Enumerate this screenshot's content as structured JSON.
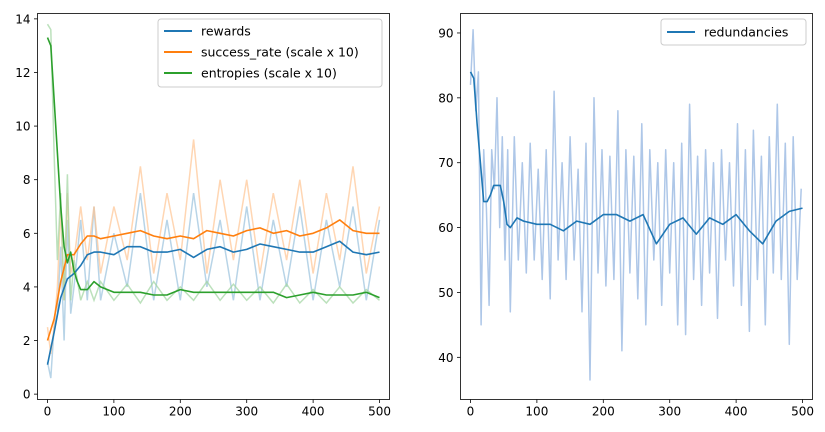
{
  "chart_data": [
    {
      "type": "line",
      "title": "",
      "xlabel": "",
      "ylabel": "",
      "xlim": [
        -15,
        515
      ],
      "ylim": [
        -0.2,
        14.2
      ],
      "xticks": [
        0,
        100,
        200,
        300,
        400,
        500
      ],
      "yticks": [
        0,
        2,
        4,
        6,
        8,
        10,
        12,
        14
      ],
      "grid": false,
      "legend_position": "top-right",
      "series": [
        {
          "name": "rewards",
          "color": "#1f77b4",
          "x": [
            0,
            10,
            20,
            30,
            40,
            50,
            60,
            70,
            80,
            100,
            120,
            140,
            160,
            180,
            200,
            220,
            240,
            260,
            280,
            300,
            320,
            340,
            360,
            380,
            400,
            420,
            440,
            460,
            480,
            500
          ],
          "values": [
            1.1,
            2.3,
            3.6,
            4.3,
            4.5,
            4.8,
            5.2,
            5.3,
            5.3,
            5.2,
            5.5,
            5.5,
            5.3,
            5.3,
            5.4,
            5.1,
            5.4,
            5.5,
            5.3,
            5.4,
            5.6,
            5.5,
            5.4,
            5.3,
            5.3,
            5.5,
            5.7,
            5.3,
            5.2,
            5.3
          ],
          "raw_x": [
            0,
            5,
            10,
            15,
            20,
            25,
            30,
            35,
            40,
            50,
            60,
            70,
            80,
            100,
            120,
            140,
            160,
            180,
            200,
            220,
            240,
            260,
            280,
            300,
            320,
            340,
            360,
            380,
            400,
            420,
            440,
            460,
            480,
            500
          ],
          "raw_values": [
            1.2,
            0.6,
            2.5,
            3.0,
            5.5,
            2.0,
            6.5,
            3.0,
            4.0,
            6.5,
            3.5,
            7.0,
            3.5,
            6.0,
            4.0,
            7.5,
            3.5,
            6.5,
            3.5,
            7.5,
            4.0,
            6.5,
            3.5,
            7.0,
            3.5,
            6.5,
            4.0,
            7.0,
            3.5,
            6.5,
            4.0,
            7.0,
            3.5,
            6.5
          ]
        },
        {
          "name": "success_rate (scale x 10)",
          "color": "#ff7f0e",
          "x": [
            0,
            10,
            20,
            30,
            40,
            50,
            60,
            70,
            80,
            100,
            120,
            140,
            160,
            180,
            200,
            220,
            240,
            260,
            280,
            300,
            320,
            340,
            360,
            380,
            400,
            420,
            440,
            460,
            480,
            500
          ],
          "values": [
            2.0,
            2.8,
            4.2,
            5.2,
            5.2,
            5.6,
            5.9,
            5.9,
            5.8,
            5.9,
            6.0,
            6.1,
            5.9,
            5.8,
            5.9,
            5.8,
            6.1,
            6.0,
            5.9,
            6.1,
            6.2,
            6.0,
            6.1,
            5.9,
            6.0,
            6.2,
            6.5,
            6.1,
            6.0,
            6.0
          ],
          "raw_x": [
            0,
            5,
            10,
            15,
            20,
            25,
            30,
            35,
            40,
            50,
            60,
            70,
            80,
            100,
            120,
            140,
            160,
            180,
            200,
            220,
            240,
            260,
            280,
            300,
            320,
            340,
            360,
            380,
            400,
            420,
            440,
            460,
            480,
            500
          ],
          "raw_values": [
            2.5,
            1.5,
            2.5,
            4.0,
            7.0,
            3.5,
            7.5,
            4.5,
            5.0,
            7.0,
            5.0,
            7.0,
            4.5,
            7.0,
            5.0,
            8.5,
            4.5,
            7.5,
            5.0,
            9.5,
            4.5,
            8.0,
            5.0,
            8.0,
            4.5,
            7.5,
            5.0,
            8.0,
            4.5,
            7.5,
            5.0,
            8.5,
            4.5,
            7.0
          ]
        },
        {
          "name": "entropies (scale x 10)",
          "color": "#2ca02c",
          "x": [
            0,
            5,
            10,
            15,
            20,
            25,
            30,
            35,
            40,
            45,
            50,
            60,
            70,
            80,
            100,
            120,
            140,
            160,
            180,
            200,
            220,
            240,
            260,
            280,
            300,
            320,
            340,
            360,
            380,
            400,
            420,
            440,
            460,
            480,
            500
          ],
          "values": [
            13.3,
            13.0,
            11.0,
            9.0,
            7.0,
            5.5,
            4.9,
            5.3,
            4.6,
            4.2,
            3.9,
            3.9,
            4.2,
            4.0,
            3.8,
            3.8,
            3.8,
            3.7,
            3.7,
            3.9,
            3.8,
            3.8,
            3.8,
            3.8,
            3.8,
            3.8,
            3.8,
            3.6,
            3.7,
            3.8,
            3.7,
            3.7,
            3.7,
            3.8,
            3.6
          ],
          "raw_x": [
            0,
            5,
            10,
            15,
            20,
            25,
            30,
            35,
            40,
            50,
            60,
            70,
            80,
            100,
            120,
            140,
            160,
            180,
            200,
            220,
            240,
            260,
            280,
            300,
            320,
            340,
            360,
            380,
            400,
            420,
            440,
            460,
            480,
            500
          ],
          "raw_values": [
            13.8,
            13.6,
            9.0,
            5.0,
            7.5,
            3.5,
            8.2,
            3.5,
            5.0,
            3.5,
            4.2,
            3.5,
            4.2,
            3.5,
            4.1,
            3.4,
            4.2,
            3.5,
            4.0,
            3.5,
            4.2,
            3.5,
            4.1,
            3.5,
            4.0,
            3.4,
            4.1,
            3.4,
            3.9,
            3.4,
            4.0,
            3.4,
            3.9,
            3.5
          ]
        }
      ]
    },
    {
      "type": "line",
      "title": "",
      "xlabel": "",
      "ylabel": "",
      "xlim": [
        -15,
        515
      ],
      "ylim": [
        33.5,
        93
      ],
      "xticks": [
        0,
        100,
        200,
        300,
        400,
        500
      ],
      "yticks": [
        40,
        50,
        60,
        70,
        80,
        90
      ],
      "grid": false,
      "legend_position": "top-right",
      "series": [
        {
          "name": "redundancies",
          "color": "#1f77b4",
          "x": [
            0,
            5,
            10,
            15,
            20,
            25,
            30,
            35,
            40,
            45,
            50,
            55,
            60,
            70,
            80,
            100,
            120,
            140,
            160,
            180,
            200,
            220,
            240,
            260,
            280,
            300,
            320,
            340,
            360,
            380,
            400,
            420,
            440,
            460,
            480,
            500
          ],
          "values": [
            84,
            83,
            76,
            70,
            64,
            64,
            65,
            66.5,
            66.5,
            66.5,
            64,
            60.5,
            60,
            61.5,
            61,
            60.5,
            60.5,
            59.5,
            61,
            60.5,
            62,
            62,
            61,
            62,
            57.5,
            60.5,
            61.5,
            59,
            61.5,
            60.5,
            62,
            59.5,
            57.5,
            61,
            62.5,
            63
          ]
        },
        {
          "name": "",
          "color": "#aec7e8",
          "x": [
            0,
            4,
            8,
            12,
            16,
            20,
            24,
            28,
            32,
            36,
            40,
            44,
            48,
            52,
            56,
            60,
            66,
            72,
            78,
            84,
            90,
            96,
            102,
            108,
            114,
            120,
            126,
            132,
            138,
            144,
            150,
            156,
            162,
            168,
            174,
            180,
            186,
            192,
            198,
            204,
            210,
            216,
            222,
            228,
            234,
            240,
            246,
            252,
            258,
            264,
            270,
            276,
            282,
            288,
            294,
            300,
            306,
            312,
            318,
            324,
            330,
            336,
            342,
            348,
            354,
            360,
            366,
            372,
            378,
            384,
            390,
            396,
            402,
            408,
            414,
            420,
            426,
            432,
            438,
            444,
            450,
            456,
            462,
            468,
            474,
            480,
            486,
            492,
            498
          ],
          "values": [
            82,
            90.5,
            78,
            84,
            45,
            72,
            63,
            48,
            72,
            66,
            80,
            60,
            74,
            55,
            72,
            47,
            74,
            55,
            70,
            53,
            73,
            55,
            69,
            52,
            72,
            49,
            81,
            55,
            70,
            52,
            74,
            55,
            69,
            47,
            73,
            36.5,
            80,
            53,
            72,
            51,
            71,
            52,
            78,
            41,
            72,
            53,
            71,
            49,
            76,
            45,
            72,
            55,
            70,
            48,
            72,
            53,
            70,
            45,
            73,
            43.5,
            79,
            52,
            71,
            48,
            72,
            53,
            70,
            46,
            72,
            55,
            70,
            51,
            76,
            48,
            72,
            44,
            75,
            52,
            71,
            45,
            74,
            53,
            79,
            52,
            73,
            42,
            74,
            52,
            66
          ]
        }
      ]
    }
  ]
}
